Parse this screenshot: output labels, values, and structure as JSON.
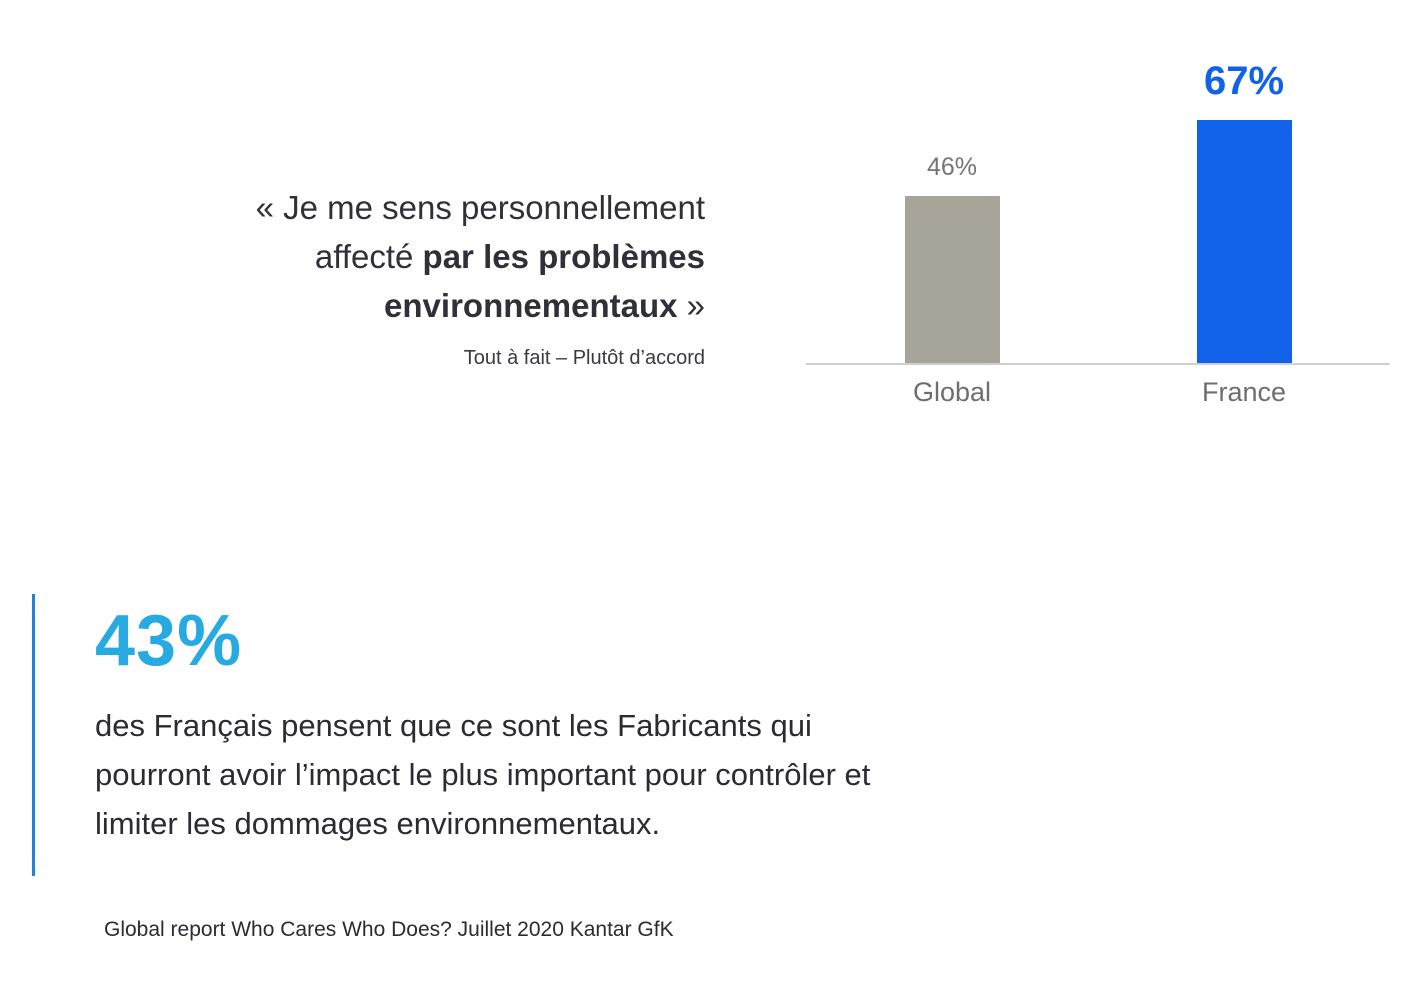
{
  "quote": {
    "line1": "« Je me sens personnellement",
    "line2_normal": "affecté ",
    "line2_bold": "par les problèmes",
    "line3_bold": "environnementaux",
    "line3_normal": " »",
    "subtitle": "Tout à fait – Plutôt d’accord"
  },
  "chart_data": {
    "type": "bar",
    "categories": [
      "Global",
      "France"
    ],
    "values": [
      46,
      67
    ],
    "value_labels": [
      "46%",
      "67%"
    ],
    "ylim": [
      0,
      100
    ],
    "colors": [
      "#a7a499",
      "#1262e9"
    ],
    "label_colors": [
      "#757575",
      "#1262e9"
    ],
    "axis_color": "#cfcfcf",
    "grid": false,
    "legend": false,
    "title": "",
    "xlabel": "",
    "ylabel": ""
  },
  "stat": {
    "value": "43%",
    "value_color": "#27a9e1",
    "accent_color": "#2580d8",
    "description": "des Français pensent que ce sont les Fabricants qui pourront avoir l’impact le plus important pour contrôler et limiter les dommages environnementaux."
  },
  "footer": {
    "source": "Global report Who Cares Who Does? Juillet 2020 Kantar GfK"
  }
}
